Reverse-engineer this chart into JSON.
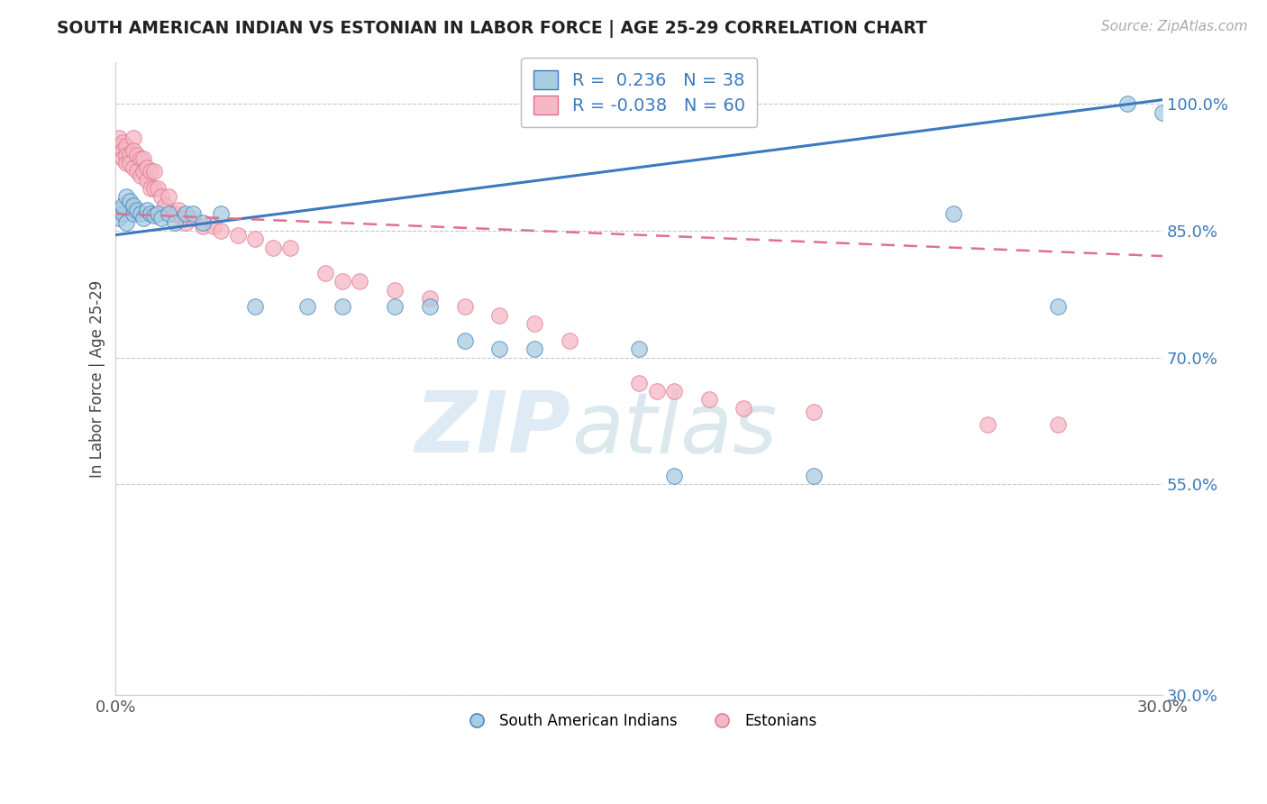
{
  "title": "SOUTH AMERICAN INDIAN VS ESTONIAN IN LABOR FORCE | AGE 25-29 CORRELATION CHART",
  "source": "Source: ZipAtlas.com",
  "ylabel": "In Labor Force | Age 25-29",
  "xlim": [
    0.0,
    0.3
  ],
  "ylim": [
    0.3,
    1.05
  ],
  "xticks": [
    0.0,
    0.05,
    0.1,
    0.15,
    0.2,
    0.25,
    0.3
  ],
  "xticklabels": [
    "0.0%",
    "",
    "",
    "",
    "",
    "",
    "30.0%"
  ],
  "yticks": [
    0.3,
    0.55,
    0.7,
    0.85,
    1.0
  ],
  "yticklabels": [
    "30.0%",
    "55.0%",
    "70.0%",
    "85.0%",
    "100.0%"
  ],
  "blue_R": 0.236,
  "blue_N": 38,
  "pink_R": -0.038,
  "pink_N": 60,
  "blue_color": "#a8cce0",
  "pink_color": "#f5b8c4",
  "blue_line_color": "#3a7abf",
  "pink_line_color": "#e07090",
  "blue_scatter_x": [
    0.001,
    0.001,
    0.002,
    0.002,
    0.003,
    0.003,
    0.004,
    0.005,
    0.005,
    0.006,
    0.007,
    0.008,
    0.009,
    0.01,
    0.011,
    0.012,
    0.013,
    0.015,
    0.017,
    0.02,
    0.022,
    0.025,
    0.03,
    0.04,
    0.055,
    0.065,
    0.08,
    0.09,
    0.1,
    0.11,
    0.12,
    0.15,
    0.16,
    0.2,
    0.24,
    0.27,
    0.29,
    0.3
  ],
  "blue_scatter_y": [
    0.865,
    0.875,
    0.87,
    0.88,
    0.86,
    0.89,
    0.885,
    0.87,
    0.88,
    0.875,
    0.87,
    0.865,
    0.875,
    0.87,
    0.868,
    0.87,
    0.865,
    0.87,
    0.86,
    0.87,
    0.87,
    0.86,
    0.87,
    0.76,
    0.76,
    0.76,
    0.76,
    0.76,
    0.72,
    0.71,
    0.71,
    0.71,
    0.56,
    0.56,
    0.87,
    0.76,
    1.0,
    0.99
  ],
  "pink_scatter_x": [
    0.001,
    0.001,
    0.001,
    0.002,
    0.002,
    0.002,
    0.003,
    0.003,
    0.003,
    0.004,
    0.004,
    0.005,
    0.005,
    0.005,
    0.006,
    0.006,
    0.007,
    0.007,
    0.008,
    0.008,
    0.009,
    0.009,
    0.01,
    0.01,
    0.011,
    0.011,
    0.012,
    0.013,
    0.014,
    0.015,
    0.016,
    0.017,
    0.018,
    0.019,
    0.02,
    0.022,
    0.025,
    0.028,
    0.03,
    0.035,
    0.04,
    0.045,
    0.05,
    0.06,
    0.065,
    0.07,
    0.08,
    0.09,
    0.1,
    0.11,
    0.12,
    0.13,
    0.15,
    0.155,
    0.16,
    0.17,
    0.18,
    0.2,
    0.25,
    0.27
  ],
  "pink_scatter_y": [
    0.96,
    0.95,
    0.94,
    0.955,
    0.945,
    0.935,
    0.95,
    0.94,
    0.93,
    0.94,
    0.93,
    0.96,
    0.945,
    0.925,
    0.94,
    0.92,
    0.935,
    0.915,
    0.935,
    0.92,
    0.925,
    0.91,
    0.92,
    0.9,
    0.92,
    0.9,
    0.9,
    0.89,
    0.88,
    0.89,
    0.87,
    0.87,
    0.875,
    0.865,
    0.86,
    0.865,
    0.855,
    0.855,
    0.85,
    0.845,
    0.84,
    0.83,
    0.83,
    0.8,
    0.79,
    0.79,
    0.78,
    0.77,
    0.76,
    0.75,
    0.74,
    0.72,
    0.67,
    0.66,
    0.66,
    0.65,
    0.64,
    0.635,
    0.62,
    0.62
  ],
  "blue_line_y0": 0.845,
  "blue_line_y1": 1.005,
  "pink_line_y0": 0.87,
  "pink_line_y1": 0.82,
  "watermark_zip": "ZIP",
  "watermark_atlas": "atlas",
  "background_color": "#ffffff",
  "grid_color": "#c8c8c8"
}
